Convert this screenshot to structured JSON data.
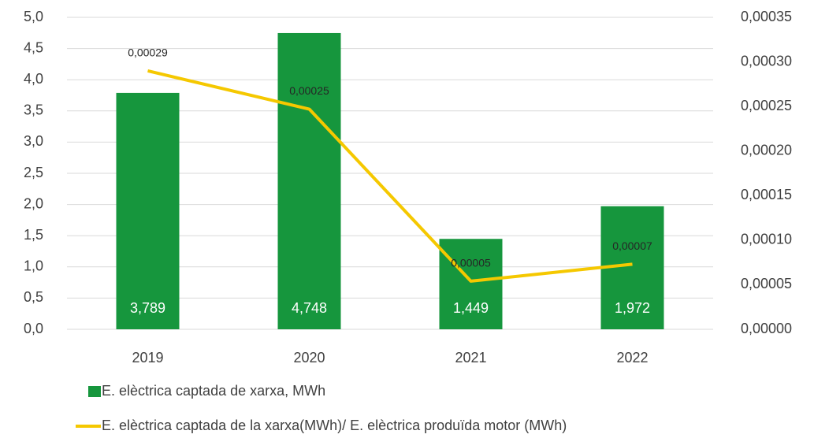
{
  "chart_data": {
    "type": "bar_line",
    "categories": [
      "2019",
      "2020",
      "2021",
      "2022"
    ],
    "series": [
      {
        "name": "E. elèctrica captada de xarxa, MWh",
        "type": "bar",
        "color": "#16963d",
        "values": [
          3.789,
          4.748,
          1.449,
          1.972
        ],
        "value_labels": [
          "3,789",
          "4,748",
          "1,449",
          "1,972"
        ]
      },
      {
        "name": "E. elèctrica captada de la xarxa(MWh)/ E. elèctrica produïda motor (MWh)",
        "type": "line",
        "axis": "y2",
        "color": "#f5c800",
        "values": [
          0.00029,
          0.000247,
          5.4e-05,
          7.3e-05
        ],
        "value_labels": [
          "0,00029",
          "0,00025",
          "0,00005",
          "0,00007"
        ]
      }
    ],
    "ylim": [
      0,
      5
    ],
    "yticks": [
      {
        "value": 0,
        "label": "0,0"
      },
      {
        "value": 0.5,
        "label": "0,5"
      },
      {
        "value": 1,
        "label": "1,0"
      },
      {
        "value": 1.5,
        "label": "1,5"
      },
      {
        "value": 2,
        "label": "2,0"
      },
      {
        "value": 2.5,
        "label": "2,5"
      },
      {
        "value": 3,
        "label": "3,0"
      },
      {
        "value": 3.5,
        "label": "3,5"
      },
      {
        "value": 4,
        "label": "4,0"
      },
      {
        "value": 4.5,
        "label": "4,5"
      },
      {
        "value": 5,
        "label": "5,0"
      }
    ],
    "y2lim": [
      0,
      0.00035
    ],
    "y2ticks": [
      {
        "value": 0,
        "label": "0,00000"
      },
      {
        "value": 5e-05,
        "label": "0,00005"
      },
      {
        "value": 0.0001,
        "label": "0,00010"
      },
      {
        "value": 0.00015,
        "label": "0,00015"
      },
      {
        "value": 0.0002,
        "label": "0,00020"
      },
      {
        "value": 0.00025,
        "label": "0,00025"
      },
      {
        "value": 0.0003,
        "label": "0,00030"
      },
      {
        "value": 0.00035,
        "label": "0,00035"
      }
    ],
    "grid": true,
    "legend": "bottom"
  }
}
